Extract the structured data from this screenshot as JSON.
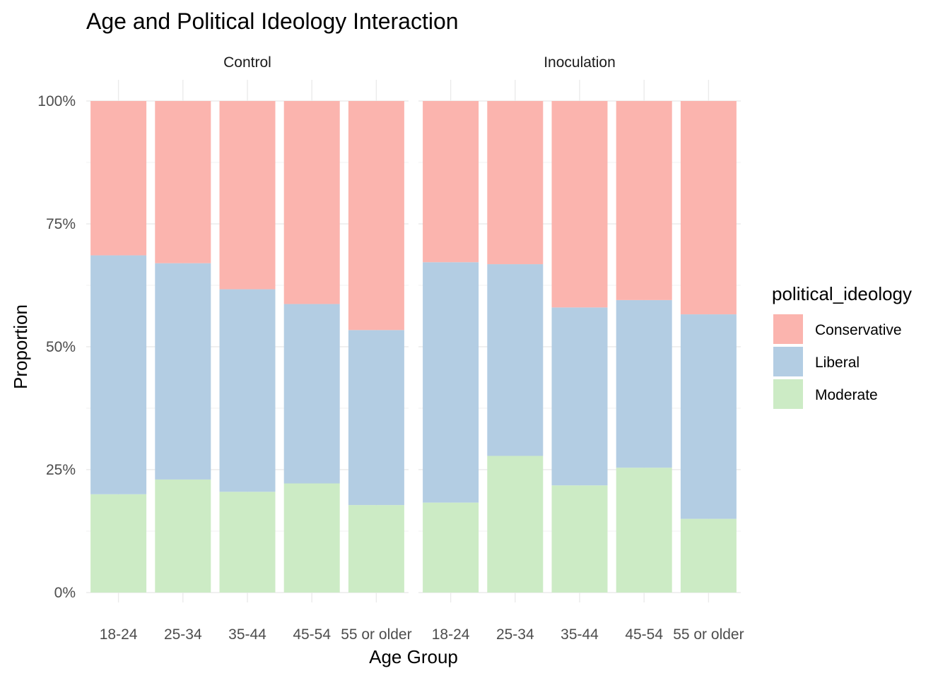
{
  "chart_data": {
    "type": "bar",
    "stacked": true,
    "title": "Age and Political Ideology Interaction",
    "xlabel": "Age Group",
    "ylabel": "Proportion",
    "ylim": [
      0,
      1
    ],
    "y_ticks": [
      0,
      0.25,
      0.5,
      0.75,
      1
    ],
    "y_tick_labels": [
      "0%",
      "25%",
      "50%",
      "75%",
      "100%"
    ],
    "categories": [
      "18-24",
      "25-34",
      "35-44",
      "45-54",
      "55 or older"
    ],
    "legend": {
      "title": "political_ideology",
      "position": "right",
      "entries": [
        "Conservative",
        "Liberal",
        "Moderate"
      ]
    },
    "colors": {
      "Conservative": "#FBB4AE",
      "Liberal": "#B3CDE3",
      "Moderate": "#CCEBC5"
    },
    "grid": true,
    "facets": [
      {
        "label": "Control",
        "series": [
          {
            "name": "Moderate",
            "values": [
              0.2,
              0.23,
              0.205,
              0.222,
              0.178
            ]
          },
          {
            "name": "Liberal",
            "values": [
              0.486,
              0.44,
              0.412,
              0.365,
              0.356
            ]
          },
          {
            "name": "Conservative",
            "values": [
              0.314,
              0.33,
              0.383,
              0.413,
              0.466
            ]
          }
        ]
      },
      {
        "label": "Inoculation",
        "series": [
          {
            "name": "Moderate",
            "values": [
              0.183,
              0.278,
              0.218,
              0.254,
              0.15
            ]
          },
          {
            "name": "Liberal",
            "values": [
              0.489,
              0.39,
              0.362,
              0.341,
              0.416
            ]
          },
          {
            "name": "Conservative",
            "values": [
              0.328,
              0.332,
              0.42,
              0.405,
              0.434
            ]
          }
        ]
      }
    ]
  }
}
